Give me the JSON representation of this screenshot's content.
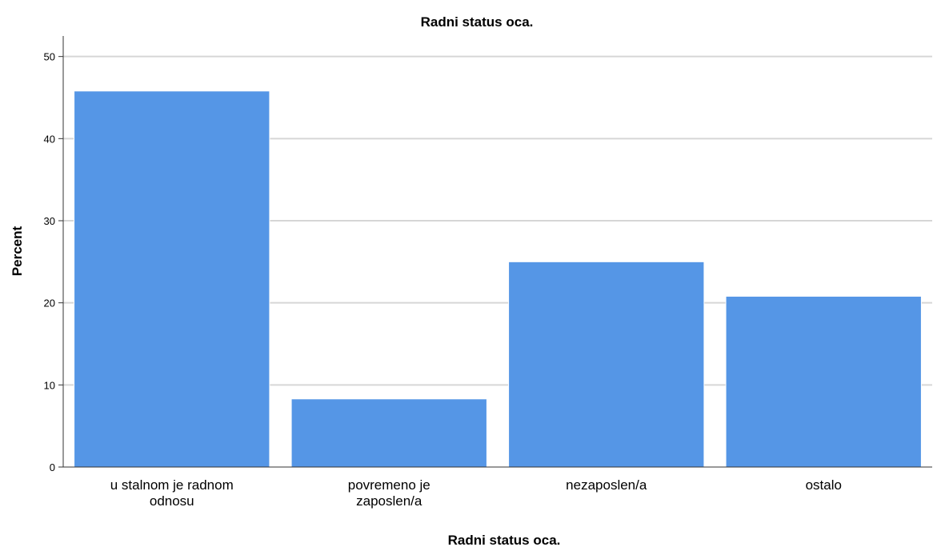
{
  "chart_data": {
    "type": "bar",
    "title": "Radni status oca.",
    "xlabel": "Radni status oca.",
    "ylabel": "Percent",
    "categories": [
      [
        "u stalnom je radnom",
        "odnosu"
      ],
      [
        "povremeno je",
        "zaposlen/a"
      ],
      [
        "nezaposlen/a"
      ],
      [
        "ostalo"
      ]
    ],
    "values": [
      45.8,
      8.3,
      25.0,
      20.8
    ],
    "ylim": [
      0,
      52.5
    ],
    "yticks": [
      0,
      10,
      20,
      30,
      40,
      50
    ],
    "grid": true,
    "colors": {
      "bar": "#5596e6",
      "bar_edge": "#ffffff",
      "grid": "#d6d6d6",
      "axis": "#333333"
    }
  }
}
